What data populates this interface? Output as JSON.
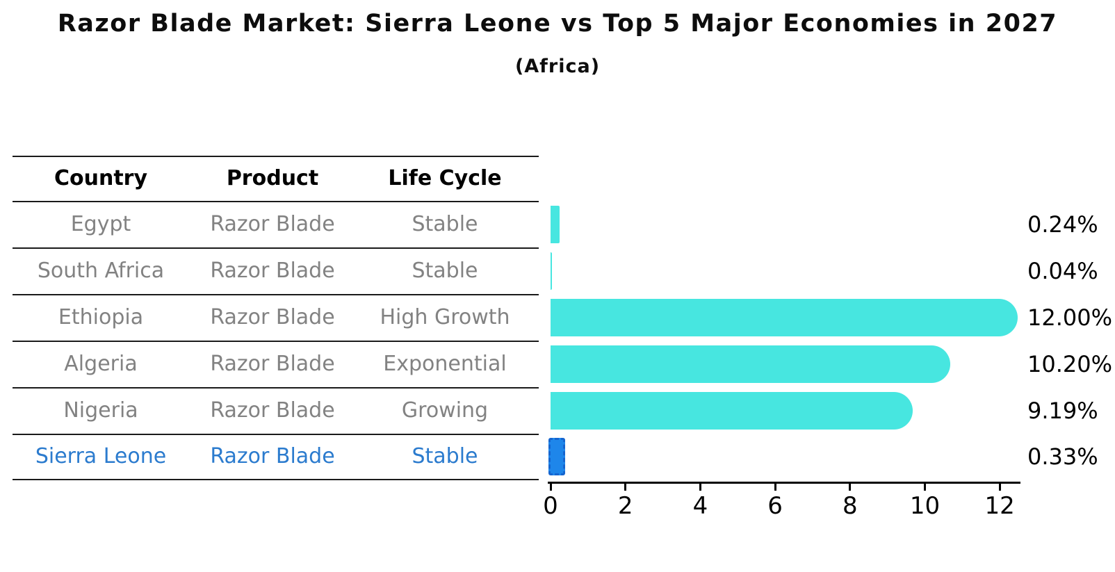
{
  "title": "Razor Blade Market: Sierra Leone vs Top 5 Major Economies in 2027",
  "subtitle": "(Africa)",
  "colors": {
    "bar": "#47E6E0",
    "highlight_bar_fill": "#1E86EA",
    "highlight_bar_border": "#1565CF",
    "highlight_text": "#2B7BCE",
    "table_body_text": "#828282",
    "axis_text": "#000000"
  },
  "table": {
    "headers": [
      "Country",
      "Product",
      "Life Cycle"
    ],
    "rows": [
      {
        "country": "Egypt",
        "product": "Razor Blade",
        "life_cycle": "Stable"
      },
      {
        "country": "South Africa",
        "product": "Razor Blade",
        "life_cycle": "Stable"
      },
      {
        "country": "Ethiopia",
        "product": "Razor Blade",
        "life_cycle": "High Growth"
      },
      {
        "country": "Algeria",
        "product": "Razor Blade",
        "life_cycle": "Exponential"
      },
      {
        "country": "Nigeria",
        "product": "Razor Blade",
        "life_cycle": "Growing"
      },
      {
        "country": "Sierra Leone",
        "product": "Razor Blade",
        "life_cycle": "Stable"
      }
    ],
    "highlight_row_index": 5
  },
  "chart_data": {
    "type": "bar",
    "orientation": "horizontal",
    "title": "Razor Blade Market: Sierra Leone vs Top 5 Major Economies in 2027",
    "subtitle": "(Africa)",
    "categories": [
      "Egypt",
      "South Africa",
      "Ethiopia",
      "Algeria",
      "Nigeria",
      "Sierra Leone"
    ],
    "values": [
      0.24,
      0.04,
      12.0,
      10.2,
      9.19,
      0.33
    ],
    "value_labels": [
      "0.24%",
      "0.04%",
      "12.00%",
      "10.20%",
      "9.19%",
      "0.33%"
    ],
    "x_ticks": [
      0,
      2,
      4,
      6,
      8,
      10,
      12
    ],
    "xlim": [
      0,
      12.5
    ],
    "highlight_index": 5,
    "grid": false,
    "legend": false,
    "xlabel": "",
    "ylabel": ""
  }
}
